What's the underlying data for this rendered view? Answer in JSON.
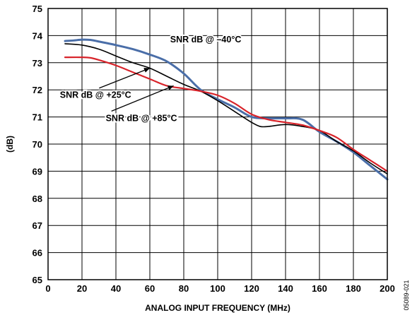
{
  "chart_data": {
    "type": "line",
    "title": "",
    "xlabel": "ANALOG INPUT FREQUENCY (MHz)",
    "ylabel": "(dB)",
    "xlim": [
      0,
      200
    ],
    "ylim": [
      65,
      75
    ],
    "x_ticks": [
      "0",
      "20",
      "40",
      "60",
      "80",
      "100",
      "120",
      "140",
      "160",
      "180",
      "200"
    ],
    "y_ticks": [
      "65",
      "66",
      "67",
      "68",
      "69",
      "70",
      "71",
      "72",
      "73",
      "74",
      "75"
    ],
    "grid": true,
    "series": [
      {
        "name": "SNR dB @ –40°C",
        "color": "#4a6ea8",
        "x": [
          10,
          15,
          20,
          25,
          30,
          40,
          50,
          60,
          70,
          80,
          90,
          100,
          110,
          120,
          130,
          140,
          150,
          160,
          170,
          180,
          190,
          200
        ],
        "y": [
          73.8,
          73.82,
          73.85,
          73.84,
          73.78,
          73.65,
          73.5,
          73.3,
          73.05,
          72.6,
          72.0,
          71.65,
          71.35,
          71.0,
          70.95,
          70.95,
          70.9,
          70.45,
          70.1,
          69.7,
          69.2,
          68.7
        ]
      },
      {
        "name": "SNR dB @ +25°C",
        "color": "#000000",
        "x": [
          10,
          20,
          30,
          40,
          50,
          60,
          70,
          80,
          90,
          100,
          110,
          120,
          125,
          130,
          140,
          150,
          160,
          170,
          180,
          190,
          200
        ],
        "y": [
          73.7,
          73.65,
          73.5,
          73.25,
          73.0,
          72.8,
          72.5,
          72.2,
          71.95,
          71.6,
          71.2,
          70.8,
          70.65,
          70.65,
          70.72,
          70.65,
          70.5,
          70.1,
          69.75,
          69.3,
          68.9
        ]
      },
      {
        "name": "SNR dB @ +85°C",
        "color": "#d8232a",
        "x": [
          10,
          20,
          25,
          30,
          40,
          50,
          60,
          70,
          80,
          90,
          100,
          110,
          120,
          130,
          140,
          150,
          160,
          170,
          180,
          190,
          200
        ],
        "y": [
          73.2,
          73.2,
          73.18,
          73.1,
          72.9,
          72.65,
          72.4,
          72.15,
          72.05,
          71.95,
          71.8,
          71.5,
          71.1,
          70.9,
          70.8,
          70.7,
          70.5,
          70.25,
          69.8,
          69.4,
          69.0
        ]
      }
    ],
    "annotations": [
      {
        "text": "SNR dB @ –40°C",
        "x": 72,
        "y": 73.75,
        "arrow_to": null
      },
      {
        "text": "SNR dB @ +25°C",
        "x": 7,
        "y": 71.7,
        "arrow_to": [
          60,
          72.8
        ]
      },
      {
        "text": "SNR dB @ +85°C",
        "x": 34,
        "y": 70.85,
        "arrow_to": [
          74,
          72.15
        ]
      }
    ],
    "figure_id": "05089-021"
  }
}
